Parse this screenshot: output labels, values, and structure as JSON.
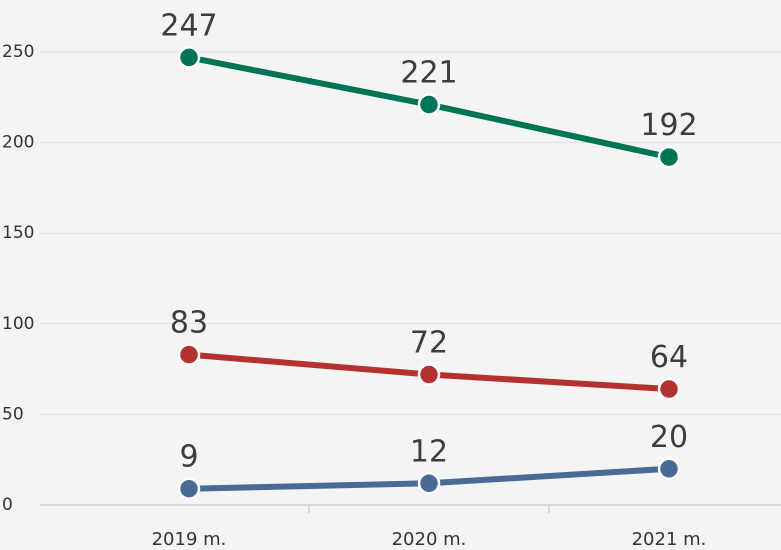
{
  "chart_data": {
    "type": "line",
    "categories": [
      "2019 m.",
      "2020 m.",
      "2021 m."
    ],
    "series": [
      {
        "color": "#007555",
        "values": [
          247,
          221,
          192
        ]
      },
      {
        "color": "#b3322f",
        "values": [
          83,
          72,
          64
        ]
      },
      {
        "color": "#4a6a96",
        "values": [
          9,
          12,
          20
        ]
      }
    ],
    "ylim": [
      0,
      250
    ],
    "yticks": [
      0,
      50,
      100,
      150,
      200,
      250
    ],
    "grid": true
  }
}
